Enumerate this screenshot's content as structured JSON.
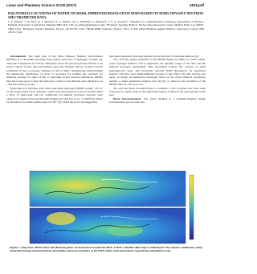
{
  "header": {
    "journal": "Lunar and Planetary Science XLVIII (2017)",
    "page_id": "2615.pdf"
  },
  "title": "EQUATORIAL LOCATIONS OF WATER ON MARS: IMPROVED RESOLUTION MAPS BASED ON MARS ODYSSEY NEUTRON SPECTROMETER DATA.",
  "authors": "J. T. Wilson¹, V. R. Eke¹, R. J. Massey¹, R. C. Elphic², W. C. Feldman³, S. Maurice⁴, L. F. A. Teodoro⁵. ¹Institute for Computational Cosmology, Department of Physics, Durham University, South Road, Durham DH1 3LE, UK (j.t.wilson@durham.ac.uk). ²Planetary Systems Branch, NASA Ames Research Center, Moffett Field, CA 94035-1000, USA. ³Planetary Science Institute, Tucson, AZ 85719, USA. ⁴IRAP-OMP, Toulouse, France. ⁵Now at The Johns Hopkins Applied Physics Laboratory, Laurel, MD 20723, USA.",
  "body": {
    "left": [
      {
        "heading": "Introduction:",
        "text": "The main goal of the Mars Odyssey Neutron Spectrometer (MONS) is to determine the upper near-surface reservoirs of hydrogen on Mars [1]. This task is important as it allows inferences about the past and present climate to be drawn, which, in turn, give information about the dynamic history of Mars and the possibility of past, or present, existence of life on Mars. Additionally, understanding the small-scale distribution of water is necessary for landing site selection for missions looking for signs of life or exploring in-situ resource utilisation. MONS data have been used to map the hydrogen content of the Martian near-subsurface on ~550 km scales [1,2,3,4]."
      },
      {
        "text": "Hydrogen rich deposits, with water-equivalent hydrogen (WEH) content ~25 wt. % have been found at low latitudes, which were interpreted as water-ice buried under a layer of desiccated soil [2]. Additional low-latitude hydrogen deposits were observed at Arabia Terra and Elysium Planitia [2] with 9.5-11 wt. % WEH [3]. Water ice should not be stable equatorward of ±30° [5], which has led to the suggestion"
      }
    ],
    "right": [
      {
        "text": "that these equatorial hydrogen deposits are in the form of hydrated minerals [2]."
      },
      {
        "text": "The ~550 km spatial resolution of the MONS limits our ability to resolve small-scale hydrogen features, and it suppresses the dynamic range of the data and the inferred hydrogen distribution. This smoothing reduces the contrast of small hydrogen-rich areas. The previously inferred WEH abundances for equatorial features will have been underestimated because of this effect. We will develop and apply an image reconstruction technique based on the pixon method, previously applied to lunar epithermal neutron data [6,7,8], to improve the resolution of the MONS data by a factor of two."
      },
      {
        "text": "We will use these reconstructions to examine a few locations that have been proposed to contain water in the equatorial regions of Mars in the geologically recent past."
      },
      {
        "heading": "Pixon Reconstruction:",
        "text": "The pixon method is a spatially-adaptive image reconstruction process that uses"
      }
    ]
  },
  "figure": {
    "caption": "Figure 1. (Top) Raw MONS data and (Bottom) pixon reconstruction around the MFF. A MOLA shaded relief map is underlayed. The contours outline the young underlaid channel material (black) and middle and lower members of the MFF (white solid and dashed, respectively) identified in [10]."
  }
}
